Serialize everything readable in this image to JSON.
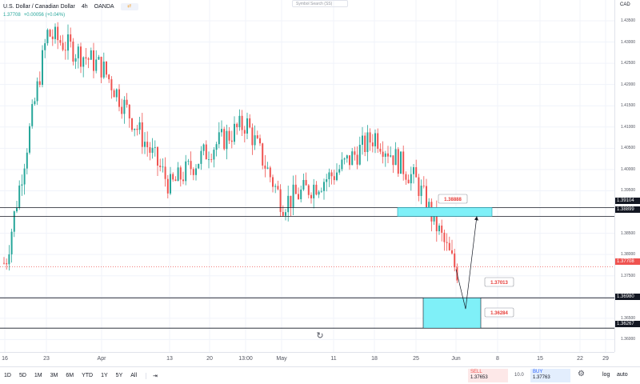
{
  "header": {
    "symbol": "U.S. Dollar / Canadian Dollar",
    "interval": "4h",
    "exchange": "OANDA",
    "price": "1.37708",
    "change": "+0.00056 (+0.04%)",
    "search_placeholder": "Symbol Search (SS)"
  },
  "currency": "CAD",
  "y_ticks": [
    "1.43500",
    "1.43000",
    "1.42500",
    "1.42000",
    "1.41500",
    "1.41000",
    "1.40500",
    "1.40000",
    "1.39500",
    "1.38500",
    "1.38000",
    "1.37500",
    "1.37000",
    "1.36500",
    "1.36000"
  ],
  "price_tags": {
    "level1": "1.39104",
    "level2": "1.38899",
    "current": "1.37708",
    "level3": "1.36980",
    "level4": "1.36267"
  },
  "annotations": {
    "box_top_label": "1.38888",
    "box_bottom_upper_label": "1.37013",
    "box_bottom_lower_label": "1.36284"
  },
  "x_ticks": [
    "16",
    "23",
    "Apr",
    "13",
    "20",
    "13:00",
    "May",
    "11",
    "18",
    "25",
    "Jun",
    "8",
    "15",
    "22",
    "29"
  ],
  "toolbar": {
    "ranges": [
      "1D",
      "5D",
      "1M",
      "3M",
      "6M",
      "YTD",
      "1Y",
      "5Y",
      "All"
    ],
    "sell_label": "SELL",
    "sell_price": "1.37653",
    "spread": "10.0",
    "buy_label": "BUY",
    "buy_price": "1.37763",
    "log_label": "log",
    "auto_label": "auto"
  },
  "colors": {
    "up": "#26a69a",
    "down": "#ef5350",
    "zone": "#7ff0f8",
    "zone_border": "#1a9fb0"
  },
  "chart_data": {
    "type": "candlestick",
    "title": "U.S. Dollar / Canadian Dollar, 4h, OANDA",
    "ylim": [
      1.358,
      1.438
    ],
    "close_trend": [
      {
        "x": "16",
        "y": 1.378
      },
      {
        "x": "23",
        "y": 1.432
      },
      {
        "x": "Apr",
        "y": 1.424
      },
      {
        "x": "13",
        "y": 1.396
      },
      {
        "x": "20",
        "y": 1.405
      },
      {
        "x": "13:00",
        "y": 1.411
      },
      {
        "x": "May",
        "y": 1.392
      },
      {
        "x": "11",
        "y": 1.399
      },
      {
        "x": "18",
        "y": 1.408
      },
      {
        "x": "25",
        "y": 1.397
      },
      {
        "x": "Jun",
        "y": 1.376
      }
    ],
    "horizontal_levels": [
      1.39104,
      1.38899,
      1.3698,
      1.36267
    ],
    "current_price": 1.37708
  }
}
